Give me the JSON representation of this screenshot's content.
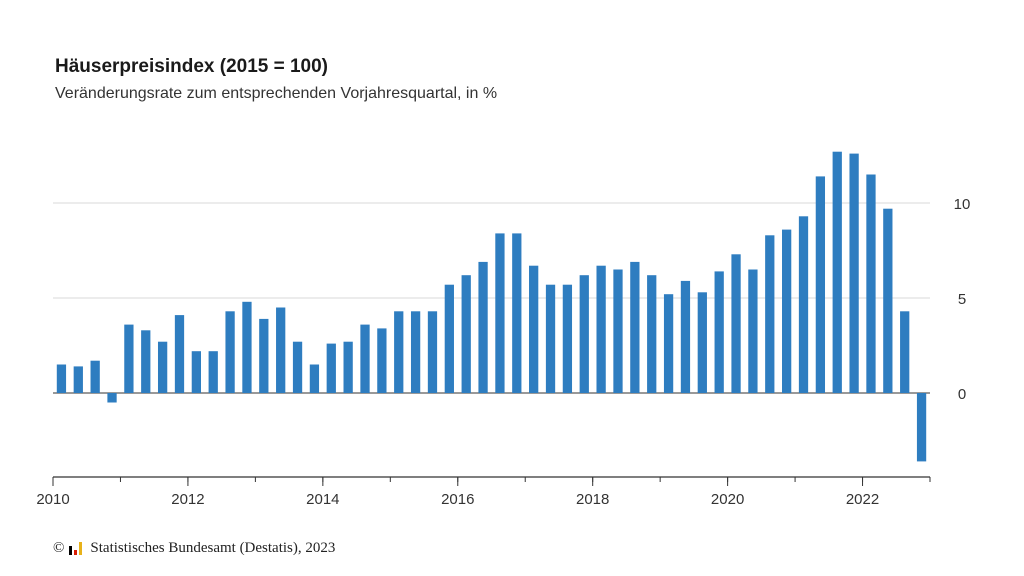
{
  "chart_data": {
    "type": "bar",
    "title": "Häuserpreisindex (2015 = 100)",
    "subtitle": "Veränderungsrate zum entsprechenden Vorjahresquartal, in %",
    "x_start": 2010,
    "x_end": 2023,
    "xticks": [
      "2010",
      "2012",
      "2014",
      "2016",
      "2018",
      "2020",
      "2022"
    ],
    "yticks": [
      "0",
      "5",
      "10"
    ],
    "ylim": [
      -3.5,
      13
    ],
    "grid": true,
    "color": "#2e7dc0",
    "quarters": [
      "2010 Q1",
      "2010 Q2",
      "2010 Q3",
      "2010 Q4",
      "2011 Q1",
      "2011 Q2",
      "2011 Q3",
      "2011 Q4",
      "2012 Q1",
      "2012 Q2",
      "2012 Q3",
      "2012 Q4",
      "2013 Q1",
      "2013 Q2",
      "2013 Q3",
      "2013 Q4",
      "2014 Q1",
      "2014 Q2",
      "2014 Q3",
      "2014 Q4",
      "2015 Q1",
      "2015 Q2",
      "2015 Q3",
      "2015 Q4",
      "2016 Q1",
      "2016 Q2",
      "2016 Q3",
      "2016 Q4",
      "2017 Q1",
      "2017 Q2",
      "2017 Q3",
      "2017 Q4",
      "2018 Q1",
      "2018 Q2",
      "2018 Q3",
      "2018 Q4",
      "2019 Q1",
      "2019 Q2",
      "2019 Q3",
      "2019 Q4",
      "2020 Q1",
      "2020 Q2",
      "2020 Q3",
      "2020 Q4",
      "2021 Q1",
      "2021 Q2",
      "2021 Q3",
      "2021 Q4",
      "2022 Q1",
      "2022 Q2",
      "2022 Q3",
      "2022 Q4"
    ],
    "values": [
      1.5,
      1.4,
      1.7,
      -0.5,
      3.6,
      3.3,
      2.7,
      4.1,
      2.2,
      2.2,
      4.3,
      4.8,
      3.9,
      4.5,
      2.7,
      1.5,
      2.6,
      2.7,
      3.6,
      3.4,
      4.3,
      4.3,
      4.3,
      5.7,
      6.2,
      6.9,
      8.4,
      8.4,
      6.7,
      5.7,
      5.7,
      6.2,
      6.7,
      6.5,
      6.9,
      6.2,
      5.2,
      5.9,
      5.3,
      6.4,
      7.3,
      6.5,
      8.3,
      8.6,
      9.3,
      11.4,
      12.7,
      12.6,
      11.5,
      9.7,
      4.3,
      -3.6
    ]
  },
  "footer": {
    "copyright": "©",
    "source": "Statistisches Bundesamt (Destatis), 2023"
  }
}
